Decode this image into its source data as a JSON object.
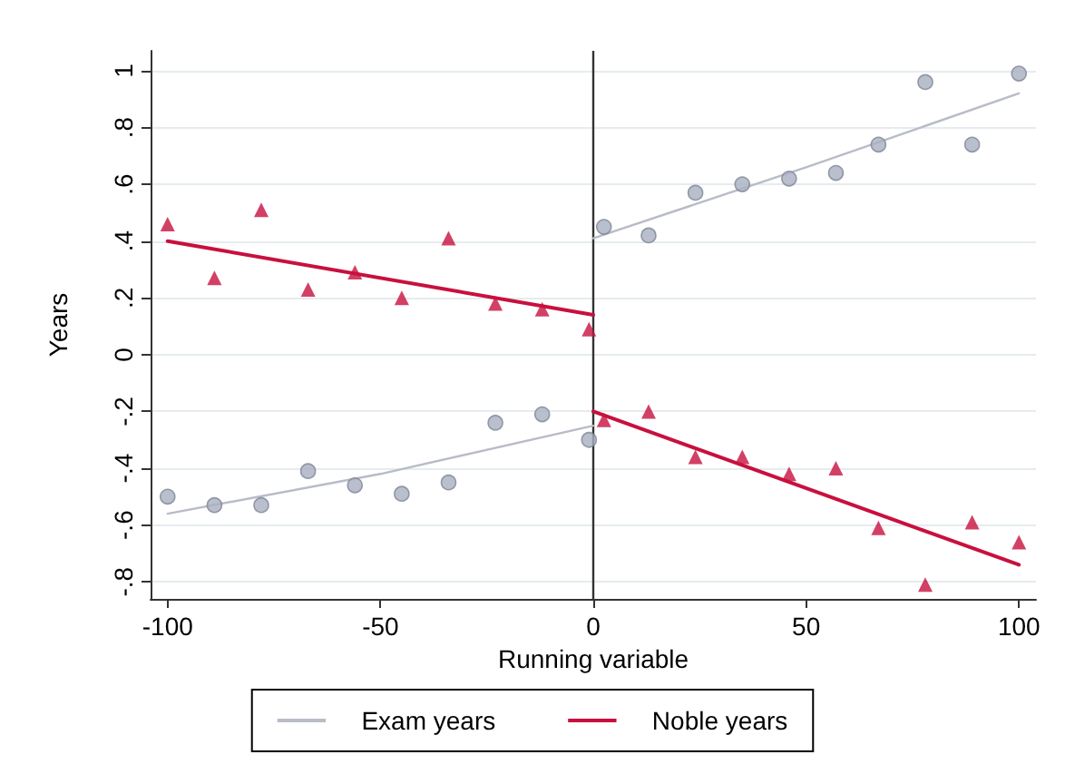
{
  "chart_data": {
    "type": "scatter",
    "xlabel": "Running variable",
    "ylabel": "Years",
    "xlim": [
      -104,
      104
    ],
    "xticks": [
      -100,
      -50,
      0,
      50,
      100
    ],
    "ylim": [
      -0.86,
      1.07
    ],
    "yticks": [
      {
        "value": 1,
        "label": "1"
      },
      {
        "value": 0.8,
        "label": ".8"
      },
      {
        "value": 0.6,
        "label": ".6"
      },
      {
        "value": 0.4,
        "label": ".4"
      },
      {
        "value": 0.2,
        "label": ".2"
      },
      {
        "value": 0,
        "label": "0"
      },
      {
        "value": -0.2,
        "label": "-.2"
      },
      {
        "value": -0.4,
        "label": "-.4"
      },
      {
        "value": -0.6,
        "label": "-.6"
      },
      {
        "value": -0.8,
        "label": "-.8"
      }
    ],
    "grid": "y",
    "legend": "bottom",
    "line_style": "solid",
    "ref_lines": [
      {
        "axis": "x",
        "value": 0,
        "color": "#333333"
      }
    ],
    "series": [
      {
        "marker": "circle",
        "color": "#a9afc0",
        "x": [
          -100,
          -89,
          -78,
          -67,
          -56,
          -45,
          -34,
          -23,
          -12,
          -1,
          2.5,
          13,
          24,
          35,
          46,
          57,
          67,
          78,
          89,
          100
        ],
        "values": [
          -0.5,
          -0.53,
          -0.53,
          -0.41,
          -0.46,
          -0.49,
          -0.45,
          -0.24,
          -0.21,
          -0.3,
          0.45,
          0.42,
          0.57,
          0.6,
          0.62,
          0.64,
          0.74,
          0.96,
          0.74,
          0.99
        ]
      },
      {
        "marker": "triangle",
        "color": "#c8103e",
        "x": [
          -100,
          -89,
          -78,
          -67,
          -56,
          -45,
          -34,
          -23,
          -12,
          -1,
          2.5,
          13,
          24,
          35,
          46,
          57,
          67,
          78,
          89,
          100
        ],
        "values": [
          0.46,
          0.27,
          0.51,
          0.23,
          0.29,
          0.2,
          0.41,
          0.18,
          0.16,
          0.09,
          -0.23,
          -0.2,
          -0.36,
          -0.36,
          -0.42,
          -0.4,
          -0.61,
          -0.81,
          -0.59,
          -0.66
        ]
      },
      {
        "type": "line",
        "name": "Exam years",
        "color": "#b8bcc8",
        "x": [
          -100,
          -50,
          0
        ],
        "values": [
          -0.56,
          -0.42,
          -0.25
        ]
      },
      {
        "type": "line",
        "color": "#b8bcc8",
        "x": [
          0,
          50,
          100
        ],
        "values": [
          0.41,
          0.66,
          0.92
        ]
      },
      {
        "type": "line",
        "name": "Noble years",
        "color": "#c8103e",
        "x": [
          -100,
          0
        ],
        "values": [
          0.4,
          0.14
        ]
      },
      {
        "type": "line",
        "color": "#c8103e",
        "x": [
          0,
          100
        ],
        "values": [
          -0.2,
          -0.74
        ]
      }
    ]
  }
}
